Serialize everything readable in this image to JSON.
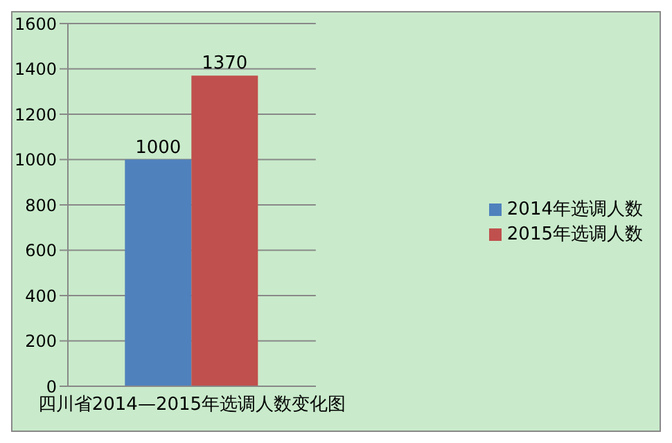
{
  "chart_data": {
    "type": "bar",
    "categories": [
      "四川省2014—2015年选调人数变化图"
    ],
    "series": [
      {
        "name": "2014年选调人数",
        "color": "#4f81bd",
        "values": [
          1000
        ]
      },
      {
        "name": "2015年选调人数",
        "color": "#c0504d",
        "values": [
          1370
        ]
      }
    ],
    "ylim": [
      0,
      1600
    ],
    "yticks": [
      0,
      200,
      400,
      600,
      800,
      1000,
      1200,
      1400,
      1600
    ],
    "grid": "y",
    "legend": "right",
    "data_labels": true
  }
}
